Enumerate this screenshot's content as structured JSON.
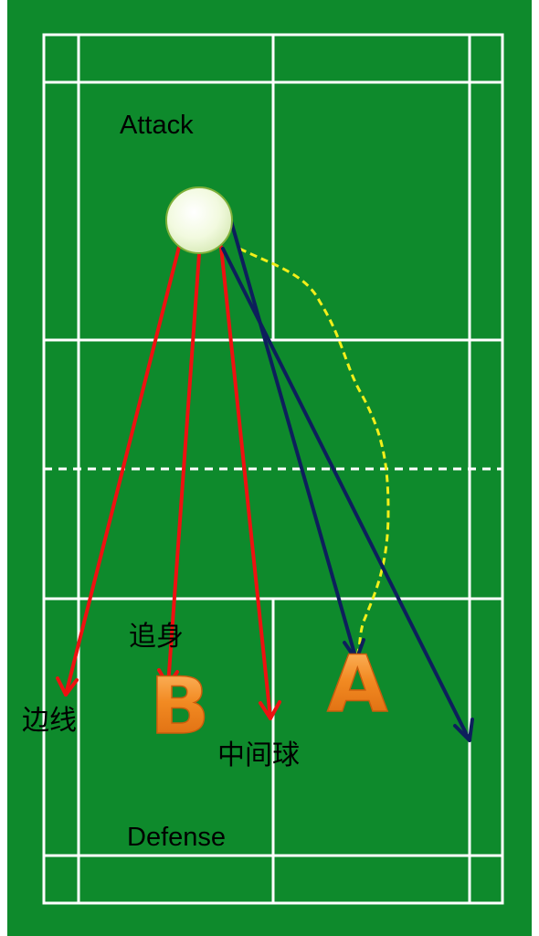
{
  "labels": {
    "attack": "Attack",
    "defense": "Defense",
    "sideline": "边线",
    "body": "追身",
    "middle": "中间球"
  },
  "players": {
    "a": "A",
    "b": "B"
  },
  "colors": {
    "court_green": "#0e8a2c",
    "court_lines": "#ffffff",
    "red_shots": "#ee1111",
    "navy_shots": "#0d1f5c",
    "yellow_path": "#f2ef1a",
    "player_orange": "#f08a22",
    "shuttle": "#f1fbdc"
  },
  "icons": {
    "shuttle": "shuttlecock-icon",
    "arrow": "arrow-icon"
  }
}
